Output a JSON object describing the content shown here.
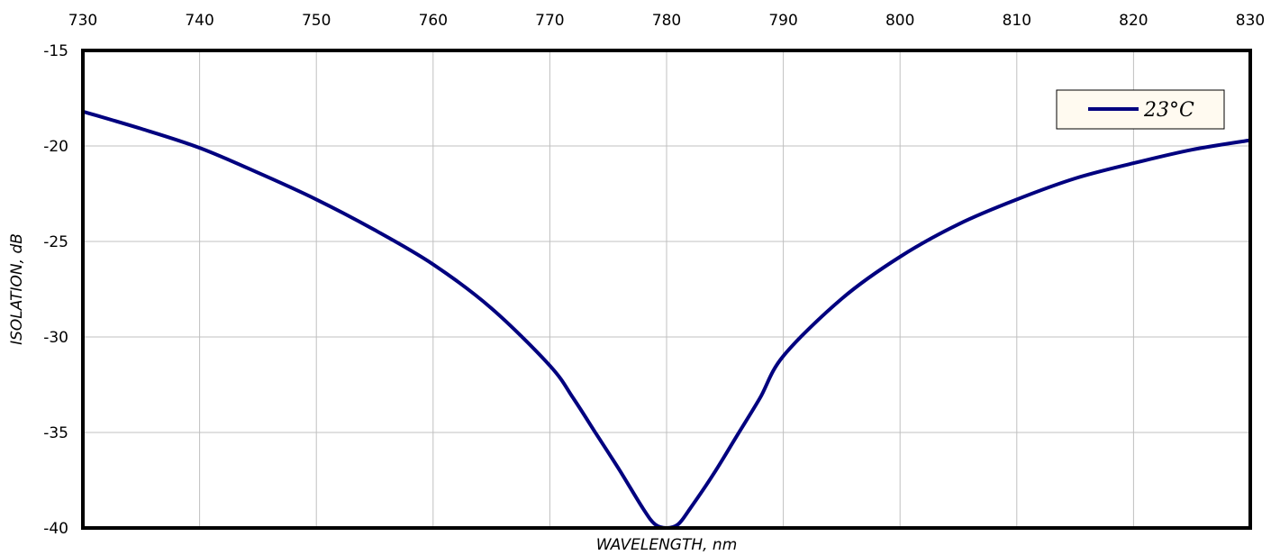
{
  "chart_data": {
    "type": "line",
    "title": "",
    "xlabel": "WAVELENGTH, nm",
    "ylabel": "ISOLATION, dB",
    "xlim": [
      730,
      830
    ],
    "ylim": [
      -40,
      -15
    ],
    "x_ticks": [
      730,
      740,
      750,
      760,
      770,
      780,
      790,
      800,
      810,
      820,
      830
    ],
    "y_ticks": [
      -15,
      -20,
      -25,
      -30,
      -35,
      -40
    ],
    "x_tick_labels": [
      "730",
      "740",
      "750",
      "760",
      "770",
      "780",
      "790",
      "800",
      "810",
      "820",
      "830"
    ],
    "y_tick_labels": [
      "-15",
      "-20",
      "-25",
      "-30",
      "-35",
      "-40"
    ],
    "x_axis_position": "top",
    "grid": true,
    "legend": "top-right",
    "series": [
      {
        "name": "23°C",
        "color": "#00007f",
        "x": [
          730,
          735,
          740,
          745,
          750,
          755,
          760,
          765,
          770,
          772,
          774,
          776,
          778,
          779,
          780,
          781,
          782,
          784,
          786,
          788,
          790,
          795,
          800,
          805,
          810,
          815,
          820,
          825,
          830
        ],
        "y": [
          -18.2,
          -19.1,
          -20.1,
          -21.4,
          -22.8,
          -24.4,
          -26.2,
          -28.5,
          -31.5,
          -33.2,
          -35.1,
          -37.0,
          -39.0,
          -39.8,
          -40.0,
          -39.8,
          -39.0,
          -37.2,
          -35.2,
          -33.2,
          -31.0,
          -28.0,
          -25.8,
          -24.1,
          -22.8,
          -21.7,
          -20.9,
          -20.2,
          -19.7
        ]
      }
    ]
  }
}
